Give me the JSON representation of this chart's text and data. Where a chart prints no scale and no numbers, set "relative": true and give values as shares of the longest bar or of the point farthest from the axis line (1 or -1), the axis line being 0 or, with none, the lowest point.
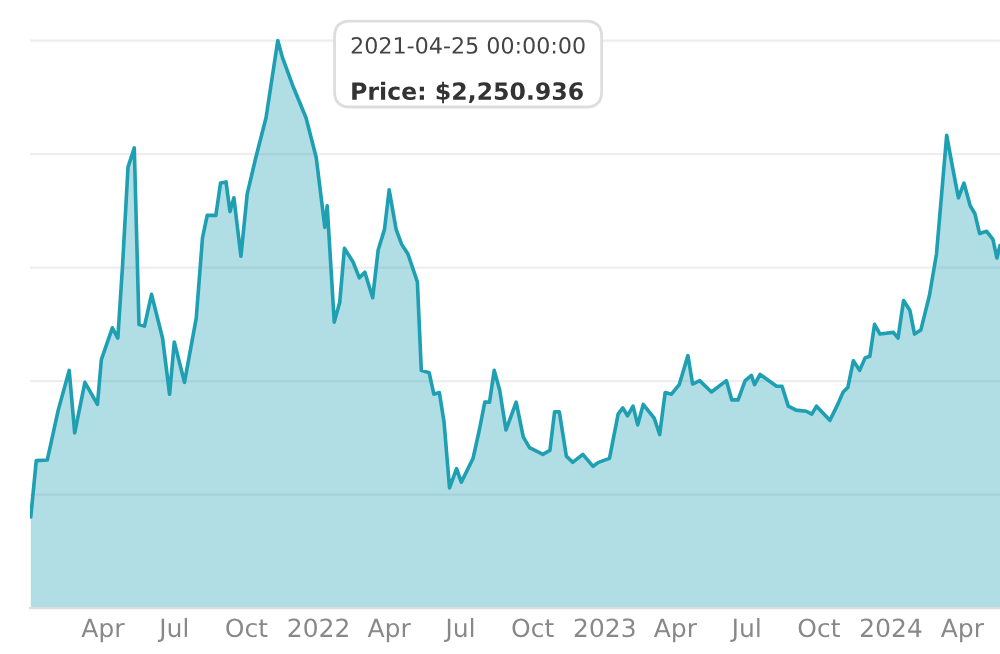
{
  "chart_data": {
    "type": "area",
    "relative": true,
    "grid": "y",
    "color": "#1f9fb2",
    "annotations": [
      "2021-04-25 00:00:00",
      "Price: $2,250.936"
    ],
    "xlim": [
      "2020-12-29",
      "2024-05-19"
    ],
    "xticks": [
      {
        "value": "2021-04-01",
        "label": "Apr"
      },
      {
        "value": "2021-07-01",
        "label": "Jul"
      },
      {
        "value": "2021-10-01",
        "label": "Oct"
      },
      {
        "value": "2022-01-01",
        "label": "2022"
      },
      {
        "value": "2022-04-01",
        "label": "Apr"
      },
      {
        "value": "2022-07-01",
        "label": "Jul"
      },
      {
        "value": "2022-10-01",
        "label": "Oct"
      },
      {
        "value": "2023-01-01",
        "label": "2023"
      },
      {
        "value": "2023-04-01",
        "label": "Apr"
      },
      {
        "value": "2023-07-01",
        "label": "Jul"
      },
      {
        "value": "2023-10-01",
        "label": "Oct"
      },
      {
        "value": "2024-01-01",
        "label": "2024"
      },
      {
        "value": "2024-04-01",
        "label": "Apr"
      }
    ],
    "x": [
      "2020-12-30",
      "2021-01-06",
      "2021-01-20",
      "2021-02-03",
      "2021-02-17",
      "2021-02-24",
      "2021-03-09",
      "2021-03-25",
      "2021-03-30",
      "2021-04-13",
      "2021-04-20",
      "2021-04-26",
      "2021-05-03",
      "2021-05-11",
      "2021-05-17",
      "2021-05-24",
      "2021-06-02",
      "2021-06-16",
      "2021-06-25",
      "2021-07-01",
      "2021-07-14",
      "2021-07-29",
      "2021-08-06",
      "2021-08-12",
      "2021-08-23",
      "2021-08-29",
      "2021-09-05",
      "2021-09-10",
      "2021-09-15",
      "2021-09-24",
      "2021-10-02",
      "2021-10-13",
      "2021-10-26",
      "2021-11-10",
      "2021-11-16",
      "2021-11-29",
      "2021-12-16",
      "2021-12-29",
      "2022-01-09",
      "2022-01-12",
      "2022-01-21",
      "2022-01-28",
      "2022-02-03",
      "2022-02-14",
      "2022-02-22",
      "2022-03-01",
      "2022-03-11",
      "2022-03-18",
      "2022-03-26",
      "2022-04-01",
      "2022-04-10",
      "2022-04-17",
      "2022-04-25",
      "2022-05-07",
      "2022-05-12",
      "2022-05-22",
      "2022-05-28",
      "2022-06-04",
      "2022-06-10",
      "2022-06-17",
      "2022-06-26",
      "2022-07-02",
      "2022-07-17",
      "2022-07-25",
      "2022-08-01",
      "2022-08-07",
      "2022-08-13",
      "2022-08-20",
      "2022-08-28",
      "2022-09-10",
      "2022-09-19",
      "2022-09-27",
      "2022-10-14",
      "2022-10-23",
      "2022-10-29",
      "2022-11-04",
      "2022-11-13",
      "2022-11-21",
      "2022-12-04",
      "2022-12-17",
      "2022-12-24",
      "2023-01-07",
      "2023-01-18",
      "2023-01-24",
      "2023-01-30",
      "2023-02-06",
      "2023-02-12",
      "2023-02-19",
      "2023-03-05",
      "2023-03-12",
      "2023-03-19",
      "2023-03-27",
      "2023-04-06",
      "2023-04-17",
      "2023-04-23",
      "2023-05-02",
      "2023-05-17",
      "2023-06-05",
      "2023-06-12",
      "2023-06-20",
      "2023-06-29",
      "2023-07-07",
      "2023-07-11",
      "2023-07-18",
      "2023-08-08",
      "2023-08-15",
      "2023-08-23",
      "2023-09-02",
      "2023-09-15",
      "2023-09-22",
      "2023-09-28",
      "2023-10-15",
      "2023-10-24",
      "2023-11-01",
      "2023-11-07",
      "2023-11-14",
      "2023-11-22",
      "2023-11-29",
      "2023-12-05",
      "2023-12-11",
      "2023-12-18",
      "2024-01-04",
      "2024-01-10",
      "2024-01-17",
      "2024-01-25",
      "2024-01-31",
      "2024-02-08",
      "2024-02-19",
      "2024-02-28",
      "2024-03-12",
      "2024-03-20",
      "2024-03-27",
      "2024-04-03",
      "2024-04-11",
      "2024-04-17",
      "2024-04-23",
      "2024-05-02",
      "2024-05-10",
      "2024-05-15",
      "2024-05-19"
    ],
    "values": [
      0.161,
      0.26,
      0.261,
      0.349,
      0.419,
      0.309,
      0.398,
      0.359,
      0.438,
      0.494,
      0.476,
      0.603,
      0.777,
      0.811,
      0.5,
      0.497,
      0.553,
      0.476,
      0.377,
      0.469,
      0.398,
      0.511,
      0.653,
      0.692,
      0.692,
      0.749,
      0.751,
      0.699,
      0.723,
      0.62,
      0.73,
      0.794,
      0.864,
      1.0,
      0.97,
      0.921,
      0.864,
      0.794,
      0.671,
      0.709,
      0.504,
      0.539,
      0.634,
      0.61,
      0.582,
      0.592,
      0.547,
      0.631,
      0.667,
      0.737,
      0.667,
      0.641,
      0.624,
      0.575,
      0.419,
      0.415,
      0.377,
      0.38,
      0.328,
      0.212,
      0.246,
      0.222,
      0.264,
      0.314,
      0.363,
      0.363,
      0.419,
      0.384,
      0.314,
      0.363,
      0.302,
      0.283,
      0.271,
      0.278,
      0.346,
      0.346,
      0.268,
      0.257,
      0.271,
      0.25,
      0.257,
      0.264,
      0.342,
      0.353,
      0.339,
      0.356,
      0.323,
      0.359,
      0.335,
      0.306,
      0.38,
      0.377,
      0.394,
      0.445,
      0.395,
      0.401,
      0.381,
      0.401,
      0.367,
      0.367,
      0.401,
      0.41,
      0.394,
      0.412,
      0.391,
      0.391,
      0.356,
      0.349,
      0.347,
      0.342,
      0.356,
      0.331,
      0.356,
      0.381,
      0.389,
      0.436,
      0.419,
      0.441,
      0.444,
      0.5,
      0.483,
      0.486,
      0.476,
      0.542,
      0.525,
      0.483,
      0.49,
      0.551,
      0.624,
      0.833,
      0.773,
      0.723,
      0.749,
      0.709,
      0.695,
      0.66,
      0.664,
      0.65,
      0.617,
      0.639
    ]
  }
}
